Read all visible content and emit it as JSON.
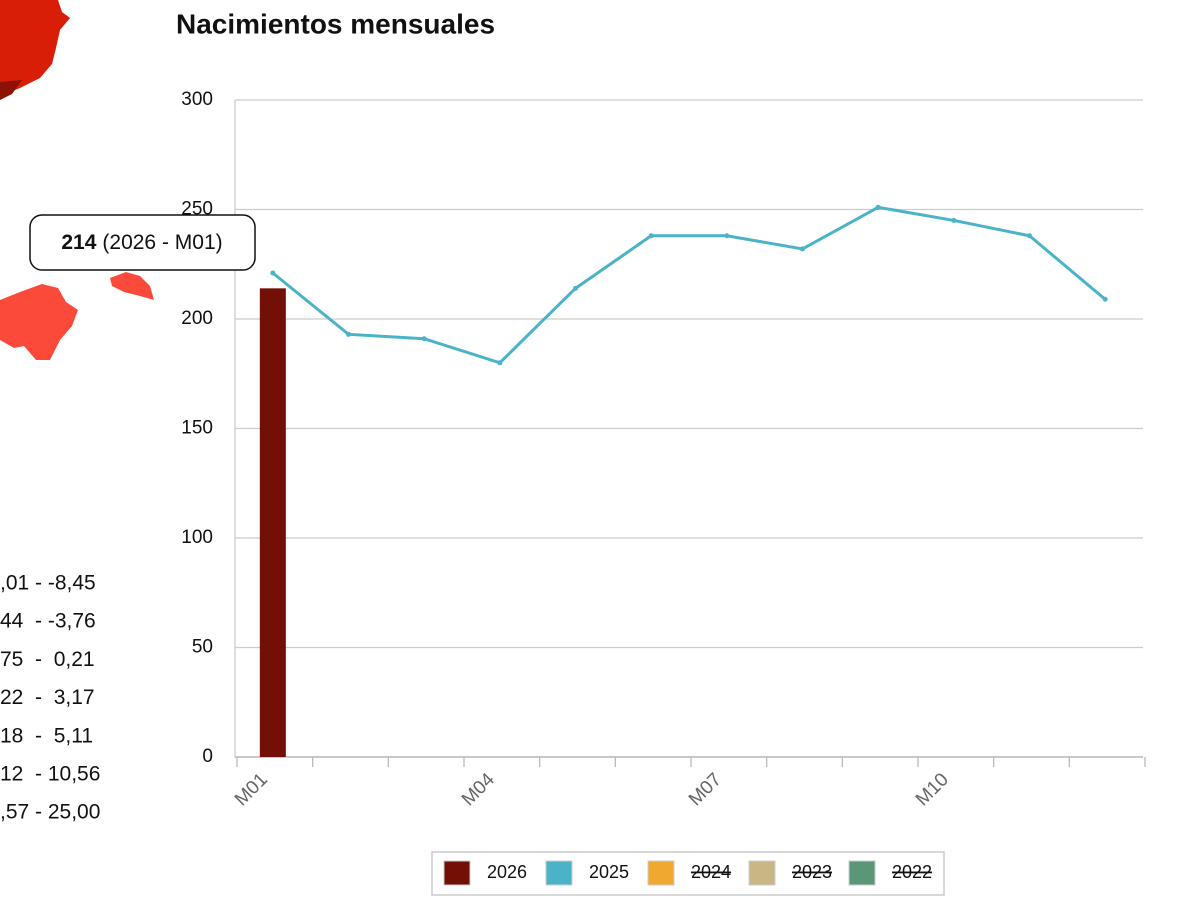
{
  "chart_data": {
    "type": "bar-line",
    "title": "Nacimientos mensuales",
    "categories": [
      "M01",
      null,
      null,
      "M04",
      null,
      null,
      "M07",
      null,
      null,
      "M10",
      null,
      null
    ],
    "series": [
      {
        "name": "2026",
        "color": "#731005",
        "kind": "bar",
        "visible": true,
        "values": [
          214,
          null,
          null,
          null,
          null,
          null,
          null,
          null,
          null,
          null,
          null,
          null
        ]
      },
      {
        "name": "2025",
        "color": "#4bb3c8",
        "kind": "line",
        "visible": true,
        "values": [
          221,
          193,
          191,
          180,
          214,
          238,
          238,
          232,
          251,
          245,
          238,
          209
        ]
      },
      {
        "name": "2024",
        "color": "#f0a830",
        "visible": false
      },
      {
        "name": "2023",
        "color": "#c8b784",
        "visible": false
      },
      {
        "name": "2022",
        "color": "#5a9678",
        "visible": false
      }
    ],
    "ylim": [
      0,
      300
    ],
    "yticks": [
      0,
      50,
      100,
      150,
      200,
      250,
      300
    ],
    "grid": true,
    "legend": "bottom",
    "tooltip": {
      "label": "(2026 - M01)"
    }
  },
  "map_legend": [
    ",01 - -8,45",
    "44  - -3,76",
    "75  -  0,21",
    "22  -  3,17",
    "18  -  5,11",
    "12  - 10,56",
    ",57 - 25,00"
  ]
}
